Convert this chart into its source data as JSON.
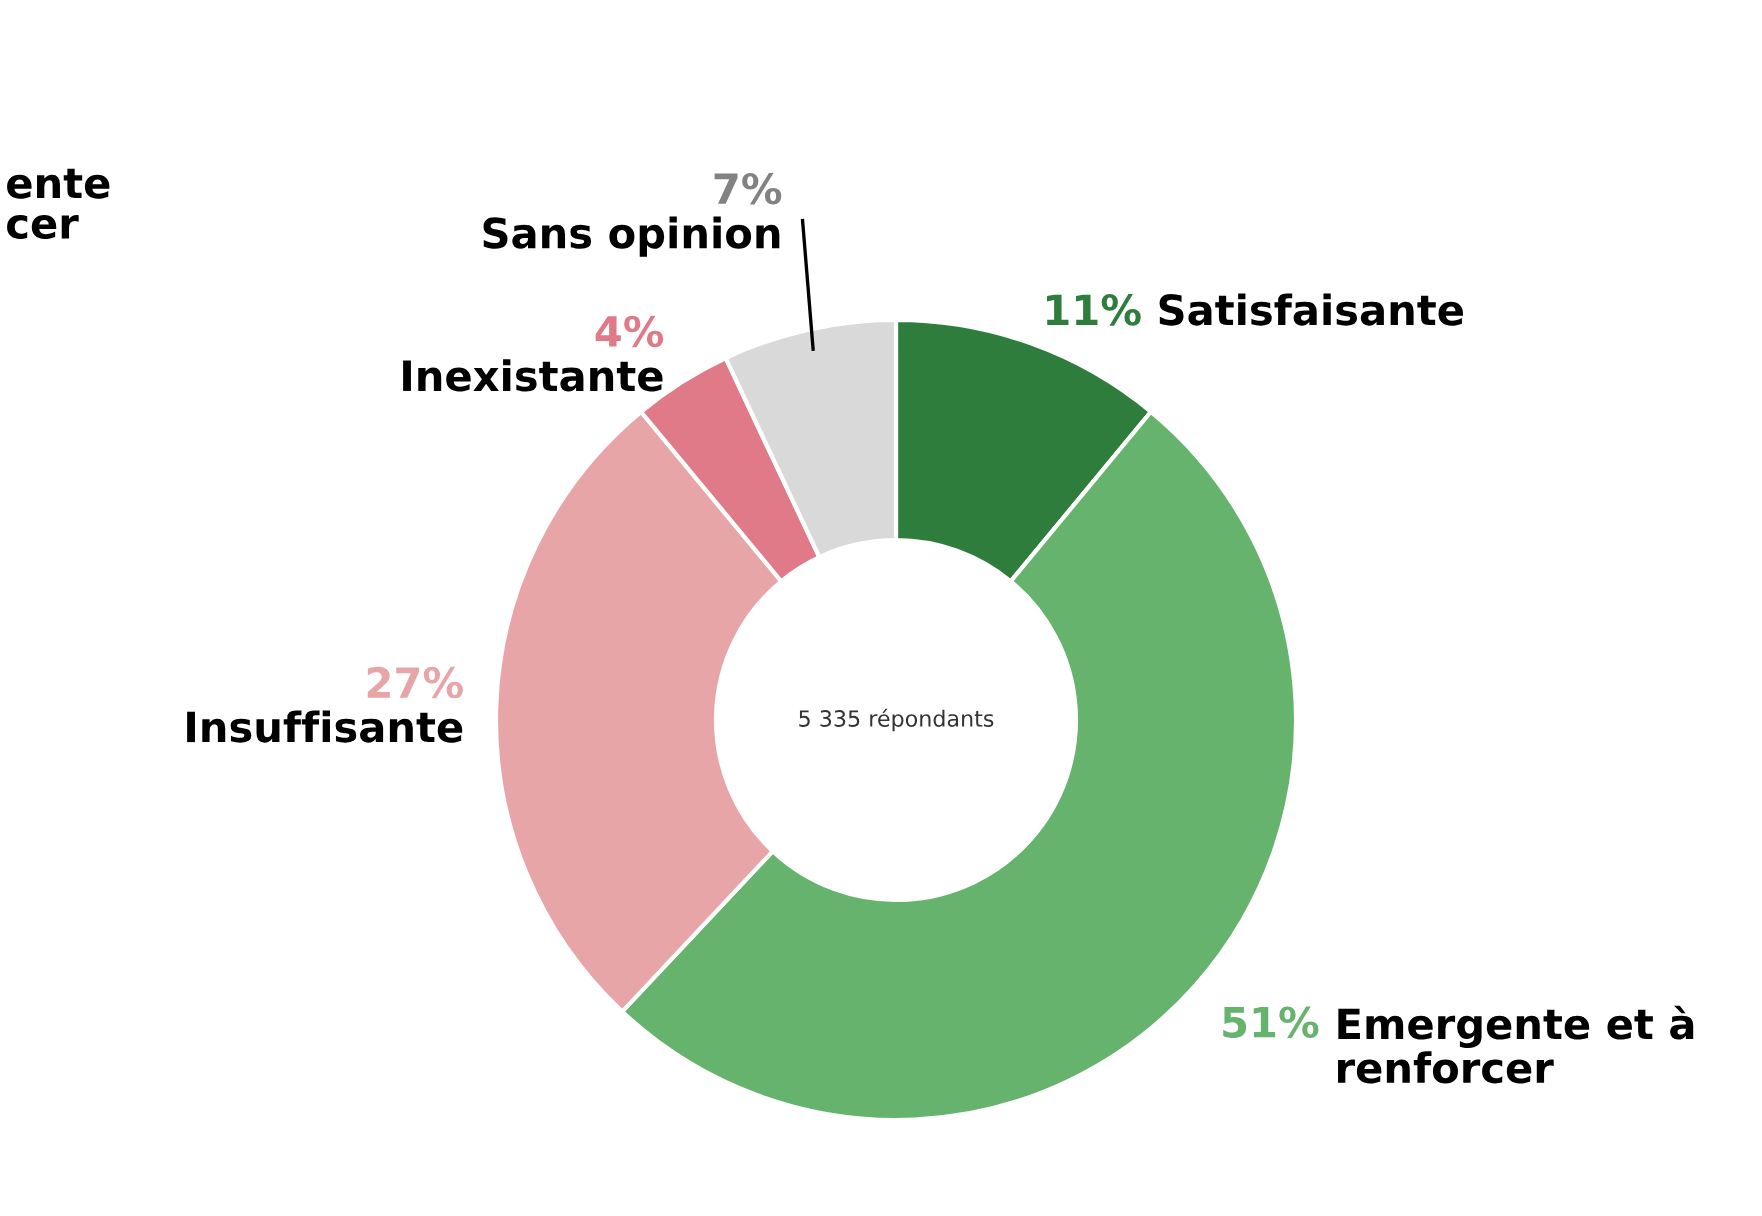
{
  "chart_data": {
    "type": "donut",
    "categories": [
      "Satisfaisante",
      "Emergente et à renforcer",
      "Insuffisante",
      "Inexistante",
      "Sans opinion"
    ],
    "values": [
      11,
      51,
      27,
      4,
      7
    ],
    "value_labels": [
      "11%",
      "51%",
      "27%",
      "4%",
      "7%"
    ],
    "colors": [
      "#2e7d3c",
      "#66b36e",
      "#e8a5a8",
      "#e07a88",
      "#d9d9d9"
    ],
    "annotations": [
      "5 335 répondants",
      "ente\ncer"
    ],
    "legend": false
  }
}
